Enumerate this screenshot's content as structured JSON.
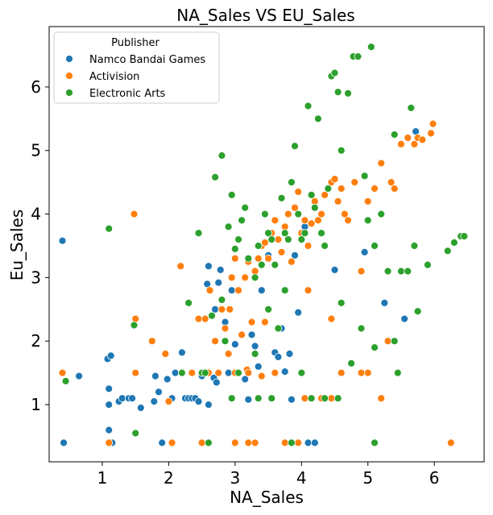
{
  "chart_data": {
    "type": "scatter",
    "title": "NA_Sales VS EU_Sales",
    "xlabel": "NA_Sales",
    "ylabel": "Eu_Sales",
    "xlim": [
      0.2,
      6.75
    ],
    "ylim": [
      0.1,
      6.95
    ],
    "xticks": [
      1,
      2,
      3,
      4,
      5,
      6
    ],
    "yticks": [
      1,
      2,
      3,
      4,
      5,
      6
    ],
    "grid": false,
    "legend": {
      "title": "Publisher",
      "placement": "top-left"
    },
    "series": [
      {
        "name": "Namco Bandai Games",
        "color": "#1f77b4",
        "points": [
          [
            0.4,
            3.58
          ],
          [
            0.42,
            0.4
          ],
          [
            0.65,
            1.45
          ],
          [
            1.08,
            1.72
          ],
          [
            1.13,
            1.77
          ],
          [
            1.1,
            1.25
          ],
          [
            1.1,
            1.0
          ],
          [
            1.1,
            0.6
          ],
          [
            1.12,
            0.4
          ],
          [
            1.15,
            0.4
          ],
          [
            1.25,
            1.05
          ],
          [
            1.3,
            1.1
          ],
          [
            1.4,
            1.1
          ],
          [
            1.45,
            1.1
          ],
          [
            1.5,
            0.55
          ],
          [
            1.58,
            0.95
          ],
          [
            1.78,
            1.05
          ],
          [
            1.8,
            1.45
          ],
          [
            1.85,
            1.2
          ],
          [
            1.9,
            0.4
          ],
          [
            1.98,
            1.4
          ],
          [
            2.05,
            1.1
          ],
          [
            2.1,
            1.5
          ],
          [
            2.2,
            1.82
          ],
          [
            2.25,
            1.1
          ],
          [
            2.3,
            1.1
          ],
          [
            2.35,
            1.1
          ],
          [
            2.4,
            1.1
          ],
          [
            2.45,
            1.05
          ],
          [
            2.5,
            1.45
          ],
          [
            2.55,
            1.5
          ],
          [
            2.6,
            1.0
          ],
          [
            2.58,
            2.9
          ],
          [
            2.6,
            3.18
          ],
          [
            2.7,
            2.5
          ],
          [
            2.68,
            1.42
          ],
          [
            2.72,
            1.35
          ],
          [
            2.75,
            2.92
          ],
          [
            2.78,
            3.12
          ],
          [
            2.85,
            2.3
          ],
          [
            2.9,
            1.5
          ],
          [
            2.95,
            2.8
          ],
          [
            3.0,
            1.95
          ],
          [
            3.05,
            1.5
          ],
          [
            3.15,
            1.4
          ],
          [
            3.2,
            1.08
          ],
          [
            3.25,
            2.1
          ],
          [
            3.3,
            1.92
          ],
          [
            3.35,
            1.6
          ],
          [
            3.4,
            2.8
          ],
          [
            3.5,
            3.35
          ],
          [
            3.55,
            3.6
          ],
          [
            3.6,
            1.82
          ],
          [
            3.65,
            1.75
          ],
          [
            3.7,
            2.2
          ],
          [
            3.75,
            1.52
          ],
          [
            3.82,
            1.8
          ],
          [
            3.85,
            1.08
          ],
          [
            3.9,
            3.35
          ],
          [
            3.95,
            2.45
          ],
          [
            4.05,
            3.8
          ],
          [
            4.1,
            0.4
          ],
          [
            4.2,
            0.4
          ],
          [
            4.5,
            3.12
          ],
          [
            4.95,
            3.4
          ],
          [
            5.25,
            2.6
          ],
          [
            5.3,
            2.0
          ],
          [
            5.55,
            2.35
          ],
          [
            5.72,
            5.3
          ]
        ]
      },
      {
        "name": "Activision",
        "color": "#ff7f0e",
        "points": [
          [
            0.4,
            1.5
          ],
          [
            1.1,
            0.4
          ],
          [
            1.48,
            4.0
          ],
          [
            1.5,
            2.35
          ],
          [
            1.5,
            1.5
          ],
          [
            1.75,
            2.0
          ],
          [
            1.95,
            1.8
          ],
          [
            2.0,
            1.05
          ],
          [
            2.05,
            0.4
          ],
          [
            2.18,
            3.18
          ],
          [
            2.2,
            1.5
          ],
          [
            2.35,
            1.5
          ],
          [
            2.45,
            2.35
          ],
          [
            2.5,
            0.4
          ],
          [
            2.55,
            2.35
          ],
          [
            2.6,
            1.5
          ],
          [
            2.62,
            2.8
          ],
          [
            2.7,
            2.0
          ],
          [
            2.75,
            1.5
          ],
          [
            2.8,
            2.5
          ],
          [
            2.85,
            2.2
          ],
          [
            2.9,
            1.8
          ],
          [
            2.92,
            2.5
          ],
          [
            2.95,
            3.0
          ],
          [
            3.0,
            3.3
          ],
          [
            3.0,
            1.5
          ],
          [
            3.0,
            0.4
          ],
          [
            3.05,
            2.8
          ],
          [
            3.1,
            2.1
          ],
          [
            3.15,
            3.0
          ],
          [
            3.18,
            1.55
          ],
          [
            3.2,
            3.25
          ],
          [
            3.2,
            0.4
          ],
          [
            3.25,
            2.3
          ],
          [
            3.3,
            3.1
          ],
          [
            3.35,
            3.3
          ],
          [
            3.4,
            3.5
          ],
          [
            3.45,
            3.55
          ],
          [
            3.5,
            3.3
          ],
          [
            3.55,
            3.7
          ],
          [
            3.6,
            3.9
          ],
          [
            3.65,
            3.6
          ],
          [
            3.7,
            3.4
          ],
          [
            3.75,
            3.8
          ],
          [
            3.8,
            4.0
          ],
          [
            3.85,
            3.25
          ],
          [
            3.9,
            4.1
          ],
          [
            3.95,
            4.35
          ],
          [
            4.0,
            3.7
          ],
          [
            4.05,
            3.9
          ],
          [
            4.1,
            3.5
          ],
          [
            4.15,
            3.85
          ],
          [
            4.2,
            4.2
          ],
          [
            4.25,
            3.9
          ],
          [
            4.3,
            4.0
          ],
          [
            4.35,
            4.3
          ],
          [
            4.4,
            4.4
          ],
          [
            4.45,
            4.5
          ],
          [
            4.5,
            4.55
          ],
          [
            4.55,
            4.2
          ],
          [
            4.6,
            4.4
          ],
          [
            4.65,
            4.0
          ],
          [
            4.7,
            3.9
          ],
          [
            4.8,
            4.5
          ],
          [
            4.9,
            3.1
          ],
          [
            5.0,
            4.2
          ],
          [
            5.1,
            4.4
          ],
          [
            5.2,
            4.8
          ],
          [
            5.3,
            2.0
          ],
          [
            5.35,
            4.5
          ],
          [
            5.4,
            4.4
          ],
          [
            5.5,
            5.1
          ],
          [
            5.6,
            5.2
          ],
          [
            5.7,
            5.1
          ],
          [
            5.75,
            5.2
          ],
          [
            5.82,
            5.17
          ],
          [
            5.95,
            5.27
          ],
          [
            5.98,
            5.42
          ],
          [
            6.25,
            0.4
          ],
          [
            3.2,
            1.5
          ],
          [
            3.4,
            1.45
          ],
          [
            3.6,
            1.5
          ],
          [
            3.75,
            0.4
          ],
          [
            3.95,
            0.4
          ],
          [
            4.05,
            1.1
          ],
          [
            4.3,
            1.1
          ],
          [
            4.45,
            1.1
          ],
          [
            4.6,
            1.5
          ],
          [
            4.9,
            1.5
          ],
          [
            5.0,
            1.5
          ],
          [
            5.2,
            1.1
          ],
          [
            3.3,
            0.4
          ],
          [
            3.45,
            2.3
          ],
          [
            4.1,
            2.8
          ],
          [
            4.45,
            2.35
          ]
        ]
      },
      {
        "name": "Electronic Arts",
        "color": "#2ca02c",
        "points": [
          [
            0.45,
            1.37
          ],
          [
            1.1,
            3.77
          ],
          [
            1.48,
            2.25
          ],
          [
            1.5,
            0.55
          ],
          [
            2.2,
            1.5
          ],
          [
            2.3,
            2.6
          ],
          [
            2.45,
            3.7
          ],
          [
            2.5,
            1.5
          ],
          [
            2.6,
            0.4
          ],
          [
            2.65,
            2.4
          ],
          [
            2.7,
            4.58
          ],
          [
            2.8,
            4.92
          ],
          [
            2.8,
            2.65
          ],
          [
            2.85,
            2.0
          ],
          [
            2.9,
            3.8
          ],
          [
            2.95,
            4.3
          ],
          [
            3.0,
            3.45
          ],
          [
            3.05,
            3.6
          ],
          [
            3.1,
            3.9
          ],
          [
            3.15,
            4.1
          ],
          [
            3.2,
            3.3
          ],
          [
            3.3,
            3.0
          ],
          [
            3.35,
            3.5
          ],
          [
            3.4,
            3.2
          ],
          [
            3.45,
            4.0
          ],
          [
            3.5,
            3.7
          ],
          [
            3.55,
            3.6
          ],
          [
            3.6,
            3.2
          ],
          [
            3.7,
            4.25
          ],
          [
            3.75,
            3.7
          ],
          [
            3.8,
            3.6
          ],
          [
            3.85,
            4.5
          ],
          [
            3.9,
            5.07
          ],
          [
            3.95,
            4.0
          ],
          [
            4.0,
            3.6
          ],
          [
            4.05,
            3.7
          ],
          [
            4.1,
            5.7
          ],
          [
            4.15,
            4.3
          ],
          [
            4.2,
            4.1
          ],
          [
            4.25,
            5.5
          ],
          [
            4.3,
            3.7
          ],
          [
            4.35,
            3.5
          ],
          [
            4.4,
            4.4
          ],
          [
            4.45,
            6.17
          ],
          [
            4.5,
            6.22
          ],
          [
            4.55,
            5.92
          ],
          [
            4.6,
            5.0
          ],
          [
            4.7,
            5.9
          ],
          [
            4.78,
            6.48
          ],
          [
            4.85,
            6.48
          ],
          [
            4.95,
            4.6
          ],
          [
            5.0,
            3.9
          ],
          [
            5.05,
            6.63
          ],
          [
            5.1,
            3.5
          ],
          [
            5.2,
            4.0
          ],
          [
            5.3,
            3.1
          ],
          [
            5.4,
            5.25
          ],
          [
            5.5,
            3.1
          ],
          [
            5.6,
            3.1
          ],
          [
            5.65,
            5.67
          ],
          [
            5.7,
            3.5
          ],
          [
            5.75,
            2.47
          ],
          [
            5.9,
            3.2
          ],
          [
            6.2,
            3.42
          ],
          [
            6.3,
            3.55
          ],
          [
            6.4,
            3.65
          ],
          [
            6.45,
            3.65
          ],
          [
            3.05,
            1.5
          ],
          [
            3.35,
            1.1
          ],
          [
            3.55,
            1.1
          ],
          [
            3.85,
            0.4
          ],
          [
            4.0,
            1.5
          ],
          [
            4.15,
            1.1
          ],
          [
            4.35,
            1.1
          ],
          [
            4.55,
            1.1
          ],
          [
            4.75,
            1.65
          ],
          [
            4.9,
            2.2
          ],
          [
            5.1,
            1.9
          ],
          [
            5.4,
            2.0
          ],
          [
            5.45,
            1.5
          ],
          [
            5.1,
            0.4
          ],
          [
            3.3,
            1.8
          ],
          [
            3.5,
            2.5
          ],
          [
            3.65,
            2.2
          ],
          [
            2.55,
            1.5
          ],
          [
            2.95,
            1.1
          ],
          [
            3.75,
            2.8
          ],
          [
            4.6,
            2.6
          ]
        ]
      }
    ]
  }
}
